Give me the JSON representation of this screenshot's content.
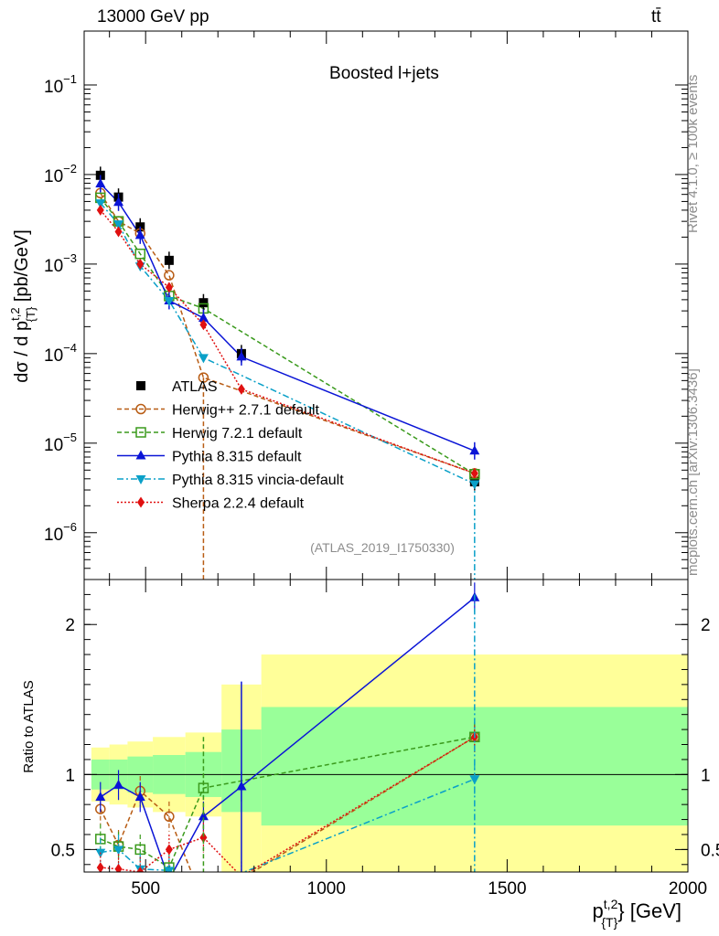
{
  "header": {
    "energy_label": "13000 GeV pp",
    "process_label": "tt̄"
  },
  "side_labels": {
    "rivet": "Rivet 4.1.0, ≥ 100k events",
    "mcplots": "mcplots.cern.ch [arXiv:1306.3436]"
  },
  "colors": {
    "ATLAS": "#000000",
    "Herwig++": "#b85c14",
    "Herwig7": "#3a9a1c",
    "Pythia": "#0a14d6",
    "Vincia": "#0aa0c8",
    "Sherpa": "#e01010",
    "band_inner": "#99ff99",
    "band_outer": "#ffff99"
  },
  "chart_data": [
    {
      "type": "line",
      "title": "Boosted l+jets",
      "watermark": "(ATLAS_2019_I1750330)",
      "xlabel": "p_{T}^{t,2} [GeV]",
      "ylabel": "dσ / d p_{T}^{t,2} [pb/GeV]",
      "yscale": "log",
      "xlim": [
        330,
        2000
      ],
      "ylim": [
        3e-07,
        0.4
      ],
      "yticks": [
        {
          "value": 0.1,
          "label": "10",
          "exp": "−1"
        },
        {
          "value": 0.01,
          "label": "10",
          "exp": "−2"
        },
        {
          "value": 0.001,
          "label": "10",
          "exp": "−3"
        },
        {
          "value": 0.0001,
          "label": "10",
          "exp": "−4"
        },
        {
          "value": 1e-05,
          "label": "10",
          "exp": "−5"
        },
        {
          "value": 1e-06,
          "label": "10",
          "exp": "−6"
        }
      ],
      "x": [
        375,
        425,
        485,
        565,
        660,
        765,
        1410
      ],
      "series": [
        {
          "name": "ATLAS",
          "key": "ATLAS",
          "values": [
            0.0098,
            0.0056,
            0.0026,
            0.0011,
            0.00037,
            0.0001,
            3.7e-06
          ]
        },
        {
          "name": "Herwig++ 2.7.1 default",
          "key": "Herwig++",
          "values": [
            0.0062,
            0.003,
            0.0022,
            0.00075,
            5.4e-05,
            null,
            4.6e-06
          ]
        },
        {
          "name": "Herwig 7.2.1 default",
          "key": "Herwig7",
          "values": [
            0.0055,
            0.003,
            0.0013,
            0.00044,
            0.00032,
            null,
            4.5e-06
          ]
        },
        {
          "name": "Pythia 8.315 default",
          "key": "Pythia",
          "values": [
            0.0079,
            0.0049,
            0.0021,
            0.00039,
            0.00025,
            9.2e-05,
            8.2e-06
          ]
        },
        {
          "name": "Pythia 8.315 vincia-default",
          "key": "Vincia",
          "values": [
            0.0048,
            0.0028,
            0.00095,
            0.00039,
            9e-05,
            null,
            3.5e-06
          ]
        },
        {
          "name": "Sherpa 2.2.4 default",
          "key": "Sherpa",
          "values": [
            0.004,
            0.0023,
            0.001,
            0.00055,
            0.00021,
            4e-05,
            4.6e-06
          ]
        }
      ]
    },
    {
      "type": "line",
      "xlabel": "p_{T}^{t,2} [GeV]",
      "ylabel": "Ratio to ATLAS",
      "xlim": [
        330,
        2000
      ],
      "ylim": [
        0.35,
        2.3
      ],
      "xticks": [
        {
          "value": 500,
          "label": "500"
        },
        {
          "value": 1000,
          "label": "1000"
        },
        {
          "value": 1500,
          "label": "1500"
        },
        {
          "value": 2000,
          "label": "2000"
        }
      ],
      "yticks": [
        {
          "value": 0.5,
          "label": "0.5"
        },
        {
          "value": 1,
          "label": "1"
        },
        {
          "value": 2,
          "label": "2"
        }
      ],
      "bin_edges": [
        350,
        400,
        450,
        520,
        610,
        710,
        820,
        2000
      ],
      "band_inner": [
        [
          0.9,
          1.1
        ],
        [
          0.9,
          1.1
        ],
        [
          0.88,
          1.12
        ],
        [
          0.87,
          1.13
        ],
        [
          0.85,
          1.15
        ],
        [
          0.75,
          1.3
        ],
        [
          0.66,
          1.45
        ]
      ],
      "band_outer": [
        [
          0.82,
          1.18
        ],
        [
          0.8,
          1.2
        ],
        [
          0.78,
          1.22
        ],
        [
          0.75,
          1.25
        ],
        [
          0.72,
          1.28
        ],
        [
          0.35,
          1.6
        ],
        [
          0.35,
          1.8
        ]
      ],
      "x": [
        375,
        425,
        485,
        565,
        660,
        765,
        1410
      ],
      "series": [
        {
          "name": "Herwig++ 2.7.1 default",
          "key": "Herwig++",
          "values": [
            0.77,
            0.53,
            0.89,
            0.72,
            0.15,
            null,
            1.25
          ]
        },
        {
          "name": "Herwig 7.2.1 default",
          "key": "Herwig7",
          "values": [
            0.57,
            0.52,
            0.5,
            0.38,
            0.91,
            null,
            1.25
          ]
        },
        {
          "name": "Pythia 8.315 default",
          "key": "Pythia",
          "values": [
            0.85,
            0.93,
            0.85,
            0.3,
            0.72,
            0.92,
            2.18
          ]
        },
        {
          "name": "Pythia 8.315 vincia-default",
          "key": "Vincia",
          "values": [
            0.48,
            0.5,
            0.37,
            0.36,
            0.24,
            null,
            0.97
          ]
        },
        {
          "name": "Sherpa 2.2.4 default",
          "key": "Sherpa",
          "values": [
            0.38,
            0.37,
            0.35,
            0.5,
            0.58,
            0.32,
            1.25
          ]
        }
      ]
    }
  ]
}
